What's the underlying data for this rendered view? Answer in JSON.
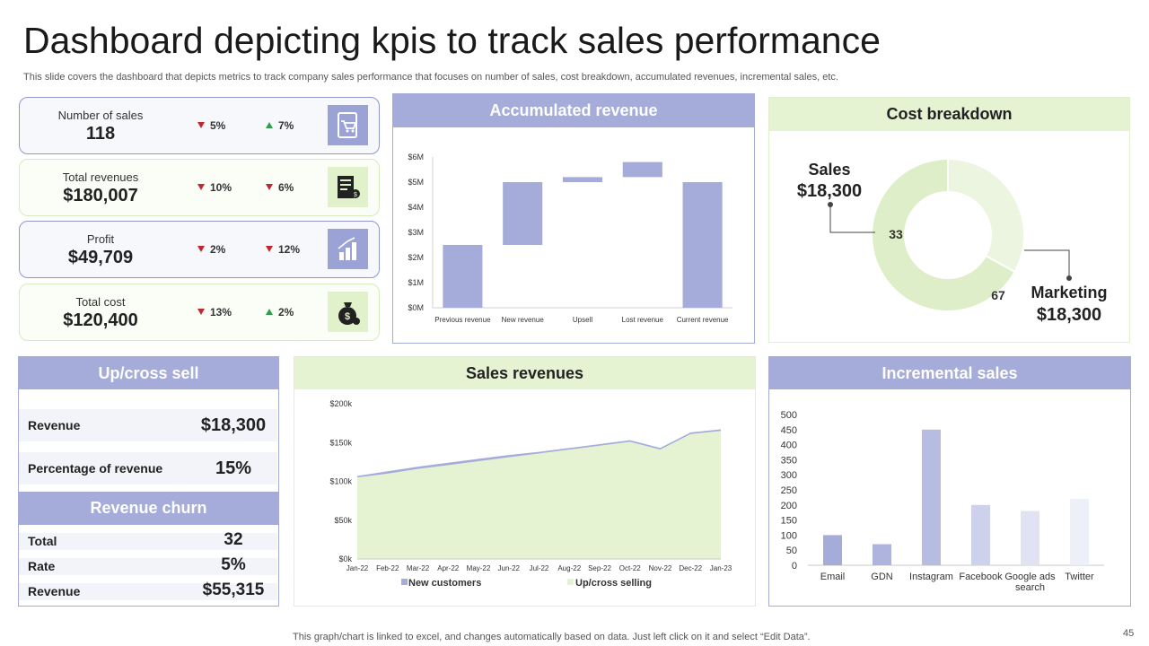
{
  "header": {
    "title": "Dashboard depicting kpis to track sales performance",
    "subtitle": "This slide covers the dashboard that depicts metrics to track company sales performance that focuses on number of sales, cost breakdown, accumulated revenues, incremental sales, etc."
  },
  "kpis": [
    {
      "label": "Number of sales",
      "value": "118",
      "c1": "5%",
      "c1_dir": "down",
      "c2": "7%",
      "c2_dir": "up",
      "icon": "shopping-cart-icon"
    },
    {
      "label": "Total revenues",
      "value": "$180,007",
      "c1": "10%",
      "c1_dir": "down",
      "c2": "6%",
      "c2_dir": "down",
      "icon": "invoice-icon"
    },
    {
      "label": "Profit",
      "value": "$49,709",
      "c1": "2%",
      "c1_dir": "down",
      "c2": "12%",
      "c2_dir": "down",
      "icon": "growth-icon"
    },
    {
      "label": "Total cost",
      "value": "$120,400",
      "c1": "13%",
      "c1_dir": "down",
      "c2": "2%",
      "c2_dir": "up",
      "icon": "money-bag-icon"
    }
  ],
  "colors": {
    "purple": "#a5acda",
    "green": "#e5f3d3",
    "down": "#c0282d",
    "up": "#2e9e4a"
  },
  "upcross": {
    "title": "Up/cross sell",
    "rows": [
      {
        "label": "Revenue",
        "value": "$18,300"
      },
      {
        "label": "Percentage of revenue",
        "value": "15%"
      }
    ]
  },
  "churn": {
    "title": "Revenue churn",
    "rows": [
      {
        "label": "Total",
        "value": "32"
      },
      {
        "label": "Rate",
        "value": "5%"
      },
      {
        "label": "Revenue",
        "value": "$55,315"
      }
    ]
  },
  "chart_data": [
    {
      "id": "accumulated",
      "type": "bar",
      "subtype": "waterfall",
      "title": "Accumulated revenue",
      "categories": [
        "Previous revenue",
        "New revenue",
        "Upsell",
        "Lost revenue",
        "Current revenue"
      ],
      "ranges": [
        [
          0,
          2.5
        ],
        [
          2.5,
          5.0
        ],
        [
          5.0,
          5.2
        ],
        [
          5.2,
          5.8
        ],
        [
          0,
          5.0
        ]
      ],
      "ylim": [
        0,
        6
      ],
      "yticks": [
        "$0M",
        "$1M",
        "$2M",
        "$3M",
        "$4M",
        "$5M",
        "$6M"
      ]
    },
    {
      "id": "cost",
      "type": "pie",
      "subtype": "donut",
      "title": "Cost breakdown",
      "labels": [
        "Sales",
        "Marketing"
      ],
      "values": [
        33,
        67
      ],
      "value_labels": [
        "33",
        "67"
      ],
      "callouts": [
        {
          "name": "Sales",
          "amount": "$18,300"
        },
        {
          "name": "Marketing",
          "amount": "$18,300"
        }
      ]
    },
    {
      "id": "salesrev",
      "type": "area",
      "title": "Sales revenues",
      "x": [
        "Jan-22",
        "Feb-22",
        "Mar-22",
        "Apr-22",
        "May-22",
        "Jun-22",
        "Jul-22",
        "Aug-22",
        "Sep-22",
        "Oct-22",
        "Nov-22",
        "Dec-22",
        "Jan-23"
      ],
      "series": [
        {
          "name": "New customers",
          "values": [
            107,
            113,
            119,
            124,
            129,
            134,
            138,
            143,
            148,
            153,
            143,
            163,
            167
          ]
        },
        {
          "name": "Up/cross selling",
          "values": [
            105,
            110,
            116,
            121,
            126,
            131,
            136,
            141,
            146,
            151,
            141,
            161,
            165
          ]
        }
      ],
      "ylim": [
        0,
        200
      ],
      "yticks": [
        "$0k",
        "$50k",
        "$100k",
        "$150k",
        "$200k"
      ]
    },
    {
      "id": "incremental",
      "type": "bar",
      "title": "Incremental sales",
      "categories": [
        "Email",
        "GDN",
        "Instagram",
        "Facebook",
        "Google ads search",
        "Twitter"
      ],
      "values": [
        100,
        70,
        450,
        200,
        180,
        220
      ],
      "ylim": [
        0,
        500
      ],
      "yticks": [
        "0",
        "50",
        "100",
        "150",
        "200",
        "250",
        "300",
        "350",
        "400",
        "450",
        "500"
      ]
    }
  ],
  "footer": {
    "note": "This graph/chart is linked to excel,  and changes automatically based on data. Just left click on it and select “Edit Data”.",
    "page": "45"
  }
}
